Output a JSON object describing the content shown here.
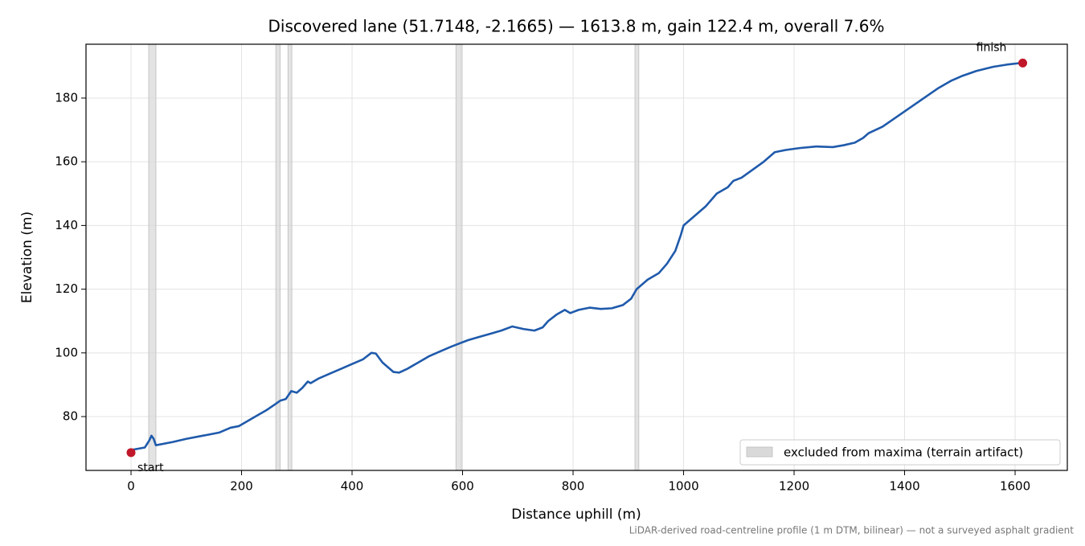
{
  "chart_data": {
    "type": "line",
    "title": "Discovered lane (51.7148, -2.1665) — 1613.8 m, gain 122.4 m, overall 7.6%",
    "x_label": "Distance uphill (m)",
    "y_label": "Elevation (m)",
    "note": "LiDAR-derived road-centreline profile (1 m DTM, bilinear) — not a surveyed asphalt gradient",
    "color": "#1f5aab",
    "x": [
      0,
      25,
      33,
      37,
      41,
      45,
      75,
      100,
      130,
      160,
      180,
      195,
      210,
      225,
      245,
      262,
      270,
      280,
      290,
      300,
      310,
      320,
      325,
      340,
      360,
      380,
      400,
      420,
      435,
      443,
      455,
      475,
      485,
      500,
      520,
      540,
      560,
      580,
      595,
      610,
      630,
      650,
      670,
      690,
      710,
      730,
      745,
      755,
      770,
      785,
      795,
      810,
      830,
      850,
      870,
      890,
      905,
      915,
      935,
      955,
      970,
      985,
      995,
      1000,
      1020,
      1040,
      1060,
      1080,
      1090,
      1105,
      1125,
      1145,
      1165,
      1185,
      1210,
      1240,
      1270,
      1290,
      1310,
      1325,
      1335,
      1360,
      1385,
      1410,
      1435,
      1460,
      1485,
      1505,
      1530,
      1560,
      1585,
      1610
    ],
    "values": [
      69.5,
      70.3,
      72.5,
      74,
      73,
      71,
      72,
      73,
      74,
      75,
      76.5,
      77,
      78.5,
      80,
      82,
      84,
      85,
      85.5,
      88,
      87.5,
      89,
      91,
      90.5,
      92,
      93.5,
      95,
      96.5,
      98,
      100,
      99.8,
      97,
      94,
      93.8,
      95,
      97,
      99,
      100.5,
      102,
      103,
      104,
      105,
      106,
      107,
      108.3,
      107.5,
      107,
      108,
      110,
      112,
      113.5,
      112.5,
      113.5,
      114.2,
      113.8,
      114,
      115,
      117,
      120,
      123,
      125,
      128,
      132,
      137,
      140,
      143,
      146,
      150,
      152,
      154,
      155,
      157.5,
      160,
      163,
      163.7,
      164.3,
      164.8,
      164.6,
      165.2,
      166,
      167.5,
      169,
      171,
      174,
      177,
      180,
      183,
      185.5,
      187,
      188.5,
      189.8,
      190.5,
      191
    ],
    "excluded_label": "excluded from maxima (terrain artifact)",
    "excluded_color": "#d9d9d9",
    "excluded_ranges": [
      [
        32,
        45
      ],
      [
        262,
        270
      ],
      [
        284,
        291
      ],
      [
        588,
        598
      ],
      [
        912,
        919
      ]
    ],
    "markers": [
      {
        "label": "start",
        "x": 0,
        "y": 68.7
      },
      {
        "label": "finish",
        "x": 1613.8,
        "y": 191
      }
    ],
    "marker_color": "#c0182a",
    "xlim": [
      -81.5,
      1694.5
    ],
    "ylim": [
      63.1,
      196.9
    ],
    "xticks": [
      0,
      200,
      400,
      600,
      800,
      1000,
      1200,
      1400,
      1600
    ],
    "yticks": [
      80,
      100,
      120,
      140,
      160,
      180
    ],
    "grid": true,
    "legend": "lower right"
  }
}
